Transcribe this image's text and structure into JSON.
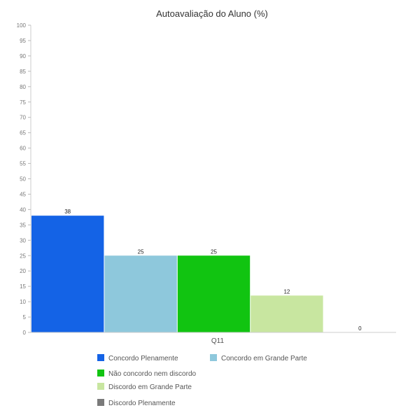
{
  "chart_data": {
    "type": "bar",
    "title": "Autoavaliação do Aluno (%)",
    "categories": [
      "Q11"
    ],
    "series": [
      {
        "name": "Concordo Plenamente",
        "values": [
          38
        ],
        "color": "#1463e6"
      },
      {
        "name": "Concordo em Grande Parte",
        "values": [
          25
        ],
        "color": "#8ec8dc"
      },
      {
        "name": "Não concordo nem discordo",
        "values": [
          25
        ],
        "color": "#11c411"
      },
      {
        "name": "Discordo em Grande Parte",
        "values": [
          12
        ],
        "color": "#c8e6a0"
      },
      {
        "name": "Discordo Plenamente",
        "values": [
          0
        ],
        "color": "#7a7a7a"
      }
    ],
    "data_labels": [
      "38",
      "25",
      "25",
      "12",
      "0"
    ],
    "y_ticks": [
      "100",
      "95",
      "90",
      "85",
      "80",
      "75",
      "70",
      "65",
      "60",
      "55",
      "50",
      "45",
      "40",
      "35",
      "30",
      "25",
      "20",
      "15",
      "10",
      "5",
      "0"
    ],
    "ylim": [
      0,
      100
    ],
    "grid": false,
    "legend_position": "bottom"
  }
}
